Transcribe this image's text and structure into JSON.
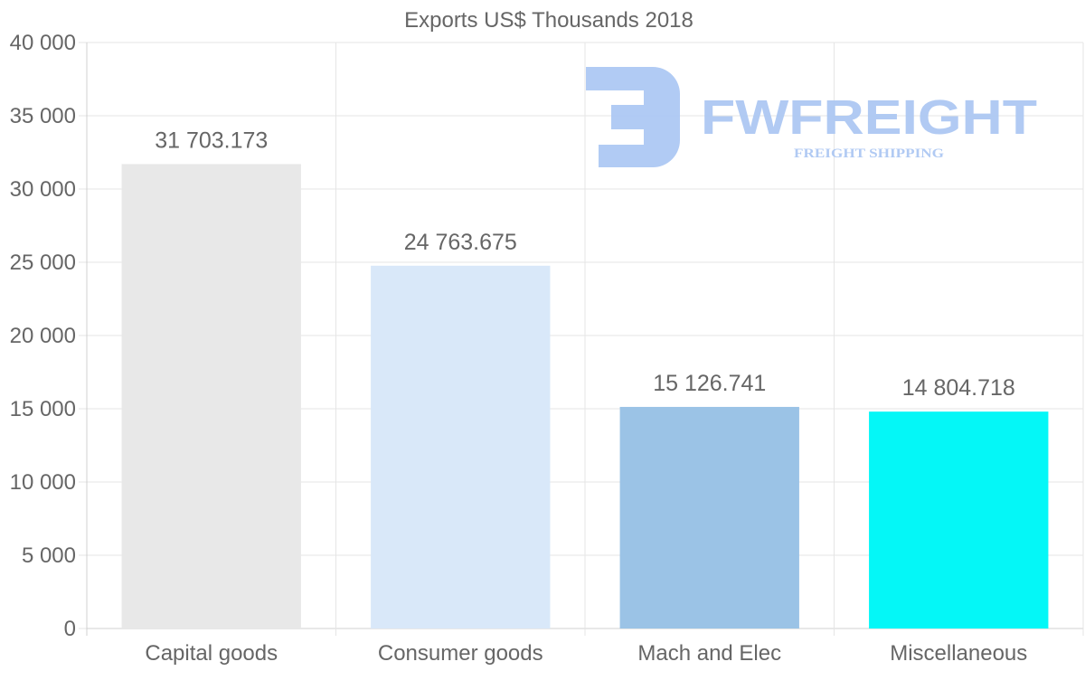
{
  "chart_data": {
    "type": "bar",
    "title": "Exports US$ Thousands 2018",
    "categories": [
      "Capital goods",
      "Consumer goods",
      "Mach and Elec",
      "Miscellaneous"
    ],
    "values": [
      31703.173,
      24763.675,
      15126.741,
      14804.718
    ],
    "value_labels": [
      "31 703.173",
      "24 763.675",
      "15 126.741",
      "14 804.718"
    ],
    "bar_colors": [
      "#e8e8e8",
      "#d9e8f9",
      "#9bc3e6",
      "#04f7f7"
    ],
    "ylim": [
      0,
      40000
    ],
    "y_ticks": [
      0,
      5000,
      10000,
      15000,
      20000,
      25000,
      30000,
      35000,
      40000
    ],
    "y_tick_labels": [
      "0",
      "5 000",
      "10 000",
      "15 000",
      "20 000",
      "25 000",
      "30 000",
      "35 000",
      "40 000"
    ],
    "xlabel": "",
    "ylabel": "",
    "grid": true
  },
  "watermark": {
    "brand": "FWFREIGHT",
    "tagline": "FREIGHT SHIPPING",
    "color": "#adc8f3"
  }
}
